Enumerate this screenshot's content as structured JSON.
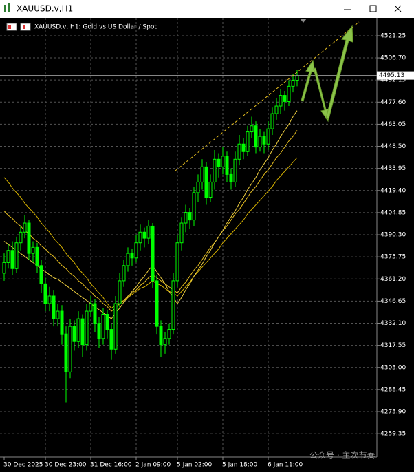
{
  "window": {
    "title": "XAUUSD.v,H1"
  },
  "watermark": "公众号 · 主次节奏",
  "chart_data": {
    "type": "candlestick",
    "title": "XAUUSD.v, H1:  Gold vs US Dollar / Spot",
    "color": "#00ff00",
    "categories": [
      "30 Dec 2025",
      null,
      null,
      null,
      null,
      null,
      null,
      null,
      null,
      null,
      "30 Dec 23:00",
      null,
      null,
      null,
      null,
      null,
      null,
      null,
      null,
      null,
      null,
      "31 Dec 16:00",
      null,
      null,
      null,
      null,
      null,
      null,
      null,
      null,
      null,
      null,
      "2 Jan 09:00",
      null,
      null,
      null,
      null,
      null,
      null,
      null,
      null,
      null,
      "5 Jan 02:00",
      null,
      null,
      null,
      null,
      null,
      null,
      null,
      null,
      null,
      null,
      "5 Jan 18:00",
      null,
      null,
      null,
      null,
      null,
      null,
      null,
      null,
      null,
      null,
      "6 Jan 11:00",
      null,
      null,
      null,
      null,
      null,
      null,
      null
    ],
    "ohlc": [
      [
        4365,
        4378,
        4360,
        4372
      ],
      [
        4372,
        4384,
        4368,
        4380
      ],
      [
        4380,
        4386,
        4364,
        4368
      ],
      [
        4368,
        4389,
        4365,
        4385
      ],
      [
        4385,
        4396,
        4380,
        4392
      ],
      [
        4392,
        4403,
        4388,
        4398
      ],
      [
        4398,
        4400,
        4374,
        4378
      ],
      [
        4378,
        4386,
        4372,
        4382
      ],
      [
        4382,
        4385,
        4365,
        4370
      ],
      [
        4370,
        4374,
        4352,
        4358
      ],
      [
        4358,
        4362,
        4340,
        4345
      ],
      [
        4345,
        4356,
        4340,
        4350
      ],
      [
        4350,
        4354,
        4330,
        4335
      ],
      [
        4335,
        4345,
        4330,
        4340
      ],
      [
        4340,
        4344,
        4318,
        4325
      ],
      [
        4325,
        4330,
        4280,
        4300
      ],
      [
        4300,
        4335,
        4296,
        4330
      ],
      [
        4330,
        4334,
        4314,
        4320
      ],
      [
        4320,
        4340,
        4316,
        4335
      ],
      [
        4335,
        4338,
        4310,
        4318
      ],
      [
        4318,
        4345,
        4314,
        4340
      ],
      [
        4340,
        4350,
        4336,
        4345
      ],
      [
        4345,
        4348,
        4326,
        4332
      ],
      [
        4332,
        4336,
        4316,
        4322
      ],
      [
        4322,
        4342,
        4318,
        4338
      ],
      [
        4338,
        4341,
        4322,
        4328
      ],
      [
        4328,
        4332,
        4308,
        4315
      ],
      [
        4315,
        4350,
        4312,
        4345
      ],
      [
        4345,
        4365,
        4342,
        4360
      ],
      [
        4360,
        4374,
        4356,
        4370
      ],
      [
        4370,
        4382,
        4366,
        4378
      ],
      [
        4378,
        4381,
        4370,
        4375
      ],
      [
        4375,
        4390,
        4372,
        4385
      ],
      [
        4385,
        4397,
        4380,
        4392
      ],
      [
        4392,
        4395,
        4382,
        4388
      ],
      [
        4388,
        4400,
        4384,
        4396
      ],
      [
        4396,
        4398,
        4355,
        4360
      ],
      [
        4360,
        4364,
        4325,
        4330
      ],
      [
        4330,
        4334,
        4310,
        4318
      ],
      [
        4318,
        4326,
        4312,
        4322
      ],
      [
        4322,
        4332,
        4318,
        4328
      ],
      [
        4328,
        4365,
        4325,
        4360
      ],
      [
        4360,
        4390,
        4356,
        4385
      ],
      [
        4385,
        4402,
        4380,
        4398
      ],
      [
        4398,
        4410,
        4392,
        4405
      ],
      [
        4405,
        4408,
        4394,
        4400
      ],
      [
        4400,
        4422,
        4396,
        4418
      ],
      [
        4418,
        4430,
        4412,
        4425
      ],
      [
        4425,
        4440,
        4420,
        4435
      ],
      [
        4435,
        4438,
        4410,
        4415
      ],
      [
        4415,
        4430,
        4412,
        4425
      ],
      [
        4425,
        4446,
        4420,
        4440
      ],
      [
        4440,
        4444,
        4428,
        4435
      ],
      [
        4435,
        4448,
        4430,
        4442
      ],
      [
        4442,
        4445,
        4425,
        4430
      ],
      [
        4430,
        4434,
        4420,
        4425
      ],
      [
        4425,
        4445,
        4422,
        4440
      ],
      [
        4440,
        4456,
        4436,
        4450
      ],
      [
        4450,
        4454,
        4440,
        4445
      ],
      [
        4445,
        4462,
        4442,
        4458
      ],
      [
        4458,
        4468,
        4454,
        4462
      ],
      [
        4462,
        4465,
        4444,
        4448
      ],
      [
        4448,
        4460,
        4445,
        4455
      ],
      [
        4455,
        4458,
        4444,
        4450
      ],
      [
        4450,
        4465,
        4446,
        4460
      ],
      [
        4460,
        4474,
        4456,
        4470
      ],
      [
        4470,
        4480,
        4466,
        4475
      ],
      [
        4475,
        4486,
        4470,
        4482
      ],
      [
        4482,
        4485,
        4472,
        4478
      ],
      [
        4478,
        4492,
        4475,
        4488
      ],
      [
        4488,
        4496,
        4484,
        4492
      ],
      [
        4492,
        4499,
        4488,
        4495
      ]
    ],
    "lines": [
      {
        "color": "#d9b400",
        "values": [
          4428,
          4425,
          4421,
          4418,
          4415,
          4411,
          4408,
          4405,
          4402,
          4398,
          4395,
          4392,
          4388,
          4385,
          4382,
          4378,
          4375,
          4372,
          4368,
          4365,
          4362,
          4358,
          4355,
          4352,
          4349,
          4345,
          4342,
          4344,
          4346,
          4347,
          4349,
          4351,
          4353,
          4355,
          4356,
          4358,
          4360,
          4358,
          4357,
          4355,
          4353,
          4352,
          4350,
          4353,
          4356,
          4359,
          4363,
          4366,
          4369,
          4372,
          4375,
          4378,
          4381,
          4385,
          4388,
          4391,
          4394,
          4397,
          4400,
          4404,
          4407,
          4410,
          4413,
          4416,
          4419,
          4422,
          4426,
          4429,
          4432,
          4435,
          4438,
          4441
        ]
      },
      {
        "color": "#e8c020",
        "values": [
          4406,
          4403,
          4401,
          4398,
          4396,
          4393,
          4391,
          4388,
          4386,
          4383,
          4381,
          4378,
          4376,
          4373,
          4370,
          4368,
          4365,
          4363,
          4360,
          4358,
          4355,
          4353,
          4350,
          4348,
          4345,
          4343,
          4340,
          4342,
          4345,
          4347,
          4350,
          4352,
          4354,
          4357,
          4359,
          4362,
          4364,
          4362,
          4360,
          4358,
          4356,
          4354,
          4352,
          4356,
          4359,
          4363,
          4367,
          4370,
          4374,
          4378,
          4382,
          4385,
          4389,
          4393,
          4396,
          4400,
          4404,
          4407,
          4411,
          4415,
          4419,
          4422,
          4426,
          4430,
          4433,
          4437,
          4441,
          4444,
          4448,
          4452,
          4455,
          4459
        ]
      },
      {
        "color": "#f0d040",
        "values": [
          4386,
          4384,
          4382,
          4380,
          4378,
          4376,
          4374,
          4372,
          4370,
          4368,
          4366,
          4364,
          4362,
          4361,
          4359,
          4357,
          4355,
          4353,
          4351,
          4349,
          4347,
          4345,
          4343,
          4341,
          4339,
          4337,
          4335,
          4339,
          4342,
          4346,
          4349,
          4353,
          4356,
          4360,
          4363,
          4367,
          4370,
          4366,
          4362,
          4358,
          4353,
          4349,
          4345,
          4349,
          4354,
          4358,
          4363,
          4367,
          4371,
          4376,
          4380,
          4385,
          4389,
          4393,
          4398,
          4402,
          4406,
          4411,
          4415,
          4420,
          4424,
          4428,
          4433,
          4437,
          4441,
          4446,
          4450,
          4455,
          4459,
          4463,
          4468,
          4472
        ]
      }
    ],
    "price_line": 4495.13,
    "ylim": [
      4244,
      4533
    ],
    "yticks": [
      4521.25,
      {
        "value": 4506.7,
        "label": "4506.70"
      },
      4492.15,
      {
        "value": 4477.6,
        "label": "4477.60"
      },
      4463.05,
      {
        "value": 4448.5,
        "label": "4448.50"
      },
      4433.95,
      {
        "value": 4419.4,
        "label": "4419.40"
      },
      4404.85,
      {
        "value": 4390.3,
        "label": "4390.30"
      },
      4375.75,
      {
        "value": 4361.2,
        "label": "4361.20"
      },
      4346.65,
      {
        "value": 4332.1,
        "label": "4332.10"
      },
      4317.55,
      {
        "value": 4303,
        "label": "4303.00"
      },
      4288.45,
      {
        "value": 4273.9,
        "label": "4273.90"
      },
      4259.35
    ],
    "grid": true
  }
}
